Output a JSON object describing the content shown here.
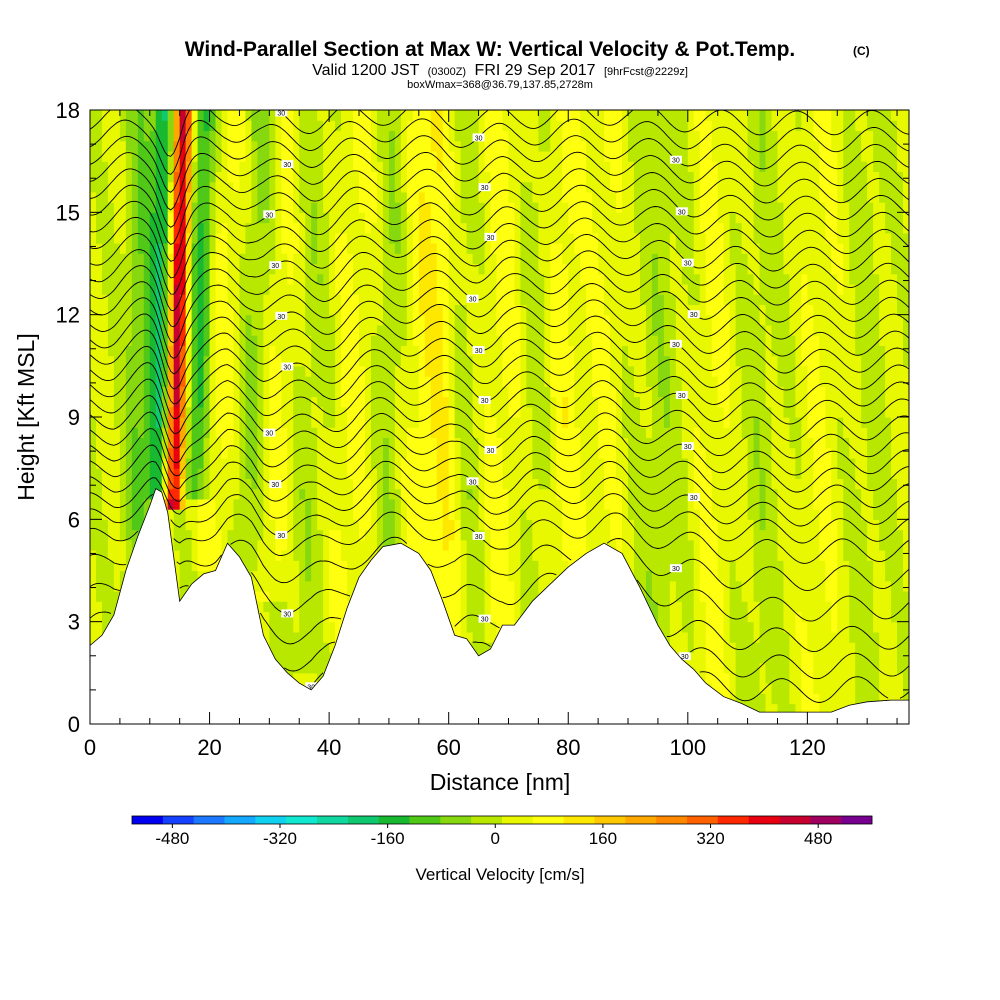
{
  "chart_data": {
    "type": "heatmap",
    "title": "Wind-Parallel Section at Max W: Vertical Velocity & Pot.Temp.",
    "title_mark": "(C)",
    "subtitle": {
      "valid": "Valid 1200 JST",
      "utc": "(0300Z)",
      "date": "FRI 29 Sep 2017",
      "forecast": "[9hrFcst@2229z]"
    },
    "boxinfo": "boxWmax=368@36.79,137.85,2728m",
    "xlabel": "Distance [nm]",
    "ylabel": "Height [Kft MSL]",
    "xlim": [
      0,
      137
    ],
    "ylim": [
      0,
      18
    ],
    "x_ticks": [
      0,
      20,
      40,
      60,
      80,
      100,
      120
    ],
    "y_ticks": [
      0,
      3,
      6,
      9,
      12,
      15,
      18
    ],
    "colorbar": {
      "label": "Vertical Velocity [cm/s]",
      "ticks": [
        -480,
        -320,
        -160,
        0,
        160,
        320,
        480
      ],
      "min": -540,
      "max": 560,
      "colors": [
        "#0000f0",
        "#1440ff",
        "#1c78ff",
        "#14a8ff",
        "#10d2f0",
        "#10e8d0",
        "#10d8a0",
        "#10c870",
        "#18b830",
        "#50c818",
        "#88d810",
        "#b8e800",
        "#e8f800",
        "#ffff10",
        "#ffe800",
        "#ffc800",
        "#ffa800",
        "#ff8800",
        "#ff6000",
        "#ff2800",
        "#e80010",
        "#c80030",
        "#a00060",
        "#780090"
      ]
    },
    "terrain": [
      [
        0,
        2.3
      ],
      [
        2,
        2.6
      ],
      [
        4,
        3.2
      ],
      [
        6,
        4.5
      ],
      [
        8,
        5.5
      ],
      [
        10,
        6.4
      ],
      [
        11,
        6.9
      ],
      [
        12,
        6.8
      ],
      [
        13,
        6.2
      ],
      [
        15,
        3.6
      ],
      [
        17,
        4.1
      ],
      [
        19,
        4.4
      ],
      [
        21,
        4.5
      ],
      [
        23,
        5.3
      ],
      [
        25,
        4.9
      ],
      [
        27,
        4.3
      ],
      [
        29,
        2.6
      ],
      [
        31,
        1.9
      ],
      [
        33,
        1.5
      ],
      [
        35,
        1.2
      ],
      [
        37,
        1.0
      ],
      [
        39,
        1.4
      ],
      [
        41,
        2.3
      ],
      [
        43,
        3.4
      ],
      [
        45,
        4.3
      ],
      [
        47,
        4.8
      ],
      [
        49,
        5.2
      ],
      [
        52,
        5.3
      ],
      [
        55,
        5.0
      ],
      [
        57,
        4.5
      ],
      [
        59,
        3.6
      ],
      [
        61,
        2.6
      ],
      [
        63,
        2.5
      ],
      [
        65,
        2.0
      ],
      [
        67,
        2.2
      ],
      [
        69,
        2.9
      ],
      [
        71,
        2.9
      ],
      [
        74,
        3.6
      ],
      [
        77,
        4.1
      ],
      [
        80,
        4.6
      ],
      [
        83,
        5.0
      ],
      [
        86,
        5.3
      ],
      [
        89,
        5.0
      ],
      [
        92,
        4.0
      ],
      [
        95,
        2.9
      ],
      [
        97,
        2.3
      ],
      [
        99,
        1.9
      ],
      [
        101,
        1.6
      ],
      [
        103,
        1.2
      ],
      [
        106,
        0.8
      ],
      [
        109,
        0.6
      ],
      [
        112,
        0.35
      ],
      [
        116,
        0.35
      ],
      [
        120,
        0.35
      ],
      [
        124,
        0.35
      ],
      [
        127,
        0.55
      ],
      [
        130,
        0.65
      ],
      [
        134,
        0.7
      ],
      [
        137,
        0.7
      ]
    ],
    "updrafts": [
      {
        "x": 14.0,
        "w": 450,
        "width": 1.6,
        "tilt": 1.4,
        "y0": 6.8,
        "y1": 18
      },
      {
        "x": 11.5,
        "w": -200,
        "width": 2.0,
        "tilt": 1.0,
        "y0": 7.0,
        "y1": 18
      },
      {
        "x": 17.5,
        "w": -170,
        "width": 2.0,
        "tilt": 1.6,
        "y0": 7.0,
        "y1": 18
      },
      {
        "x": 8.0,
        "w": -90,
        "width": 2.6,
        "tilt": 0.4,
        "y0": 3.5,
        "y1": 18
      },
      {
        "x": 21.0,
        "w": 60,
        "width": 2.8,
        "tilt": 1.8,
        "y0": 5.0,
        "y1": 18
      },
      {
        "x": 26.0,
        "w": -70,
        "width": 3.0,
        "tilt": 2.5,
        "y0": 4.5,
        "y1": 18
      },
      {
        "x": 30.0,
        "w": 60,
        "width": 3.0,
        "tilt": 2.2,
        "y0": 4.0,
        "y1": 18
      },
      {
        "x": 36.0,
        "w": -40,
        "width": 4.0,
        "tilt": 1.5,
        "y0": 2.0,
        "y1": 18
      },
      {
        "x": 43.0,
        "w": 50,
        "width": 4.0,
        "tilt": 1.2,
        "y0": 3.0,
        "y1": 18
      },
      {
        "x": 50.0,
        "w": -60,
        "width": 3.0,
        "tilt": 1.0,
        "y0": 5.0,
        "y1": 18
      },
      {
        "x": 54.0,
        "w": 60,
        "width": 3.5,
        "tilt": 1.0,
        "y0": 4.5,
        "y1": 18
      },
      {
        "x": 60.0,
        "w": 80,
        "width": 2.8,
        "tilt": -1.0,
        "y0": 2.8,
        "y1": 18
      },
      {
        "x": 63.5,
        "w": -50,
        "width": 2.5,
        "tilt": -1.5,
        "y0": 2.3,
        "y1": 18
      },
      {
        "x": 69.0,
        "w": 55,
        "width": 3.5,
        "tilt": 0.5,
        "y0": 2.8,
        "y1": 18
      },
      {
        "x": 74.0,
        "w": -40,
        "width": 3.0,
        "tilt": 0.5,
        "y0": 3.5,
        "y1": 18
      },
      {
        "x": 79.0,
        "w": 60,
        "width": 3.0,
        "tilt": 0.3,
        "y0": 4.4,
        "y1": 18
      },
      {
        "x": 86.0,
        "w": 40,
        "width": 3.0,
        "tilt": 0.2,
        "y0": 5.0,
        "y1": 18
      },
      {
        "x": 95.0,
        "w": -40,
        "width": 4.0,
        "tilt": 0.5,
        "y0": 2.5,
        "y1": 18
      },
      {
        "x": 104.0,
        "w": 45,
        "width": 3.0,
        "tilt": 0.3,
        "y0": 1.2,
        "y1": 18
      },
      {
        "x": 112.0,
        "w": -35,
        "width": 3.0,
        "tilt": 0.2,
        "y0": 0.4,
        "y1": 18
      },
      {
        "x": 122.0,
        "w": 35,
        "width": 3.5,
        "tilt": 0.3,
        "y0": 0.4,
        "y1": 18
      },
      {
        "x": 130.0,
        "w": -30,
        "width": 3.0,
        "tilt": 0.2,
        "y0": 0.7,
        "y1": 18
      }
    ],
    "isentropes": {
      "levels": [
        0.9,
        1.6,
        2.4,
        3.3,
        4.2,
        5.0,
        5.6,
        6.1,
        6.6,
        7.1,
        7.6,
        8.1,
        8.6,
        9.1,
        9.6,
        10.1,
        10.6,
        11.1,
        11.6,
        12.1,
        12.6,
        13.1,
        13.6,
        14.1,
        14.6,
        15.1,
        15.6,
        16.1,
        16.6,
        17.1,
        17.6
      ],
      "label_text": "30"
    }
  }
}
